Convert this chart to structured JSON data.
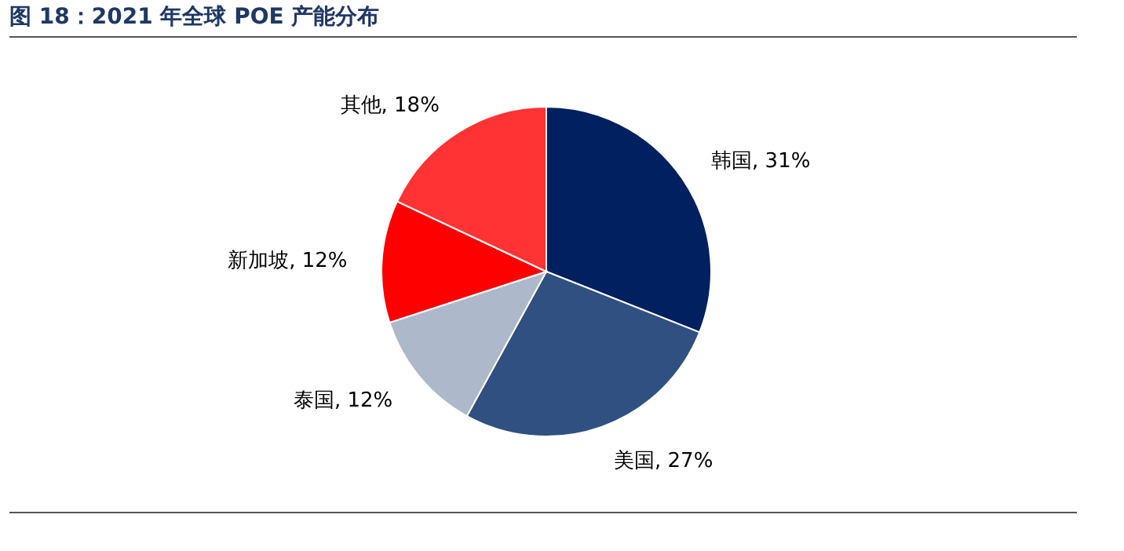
{
  "chart_data": {
    "type": "pie",
    "title": "图 18：2021 年全球 POE 产能分布",
    "categories": [
      "韩国",
      "美国",
      "泰国",
      "新加坡",
      "其他"
    ],
    "values": [
      31,
      27,
      12,
      12,
      18
    ],
    "value_labels": [
      "31%",
      "27%",
      "12%",
      "12%",
      "18%"
    ],
    "colors": [
      "#002060",
      "#2f5080",
      "#adb9ca",
      "#ff0000",
      "#ff3333"
    ]
  }
}
